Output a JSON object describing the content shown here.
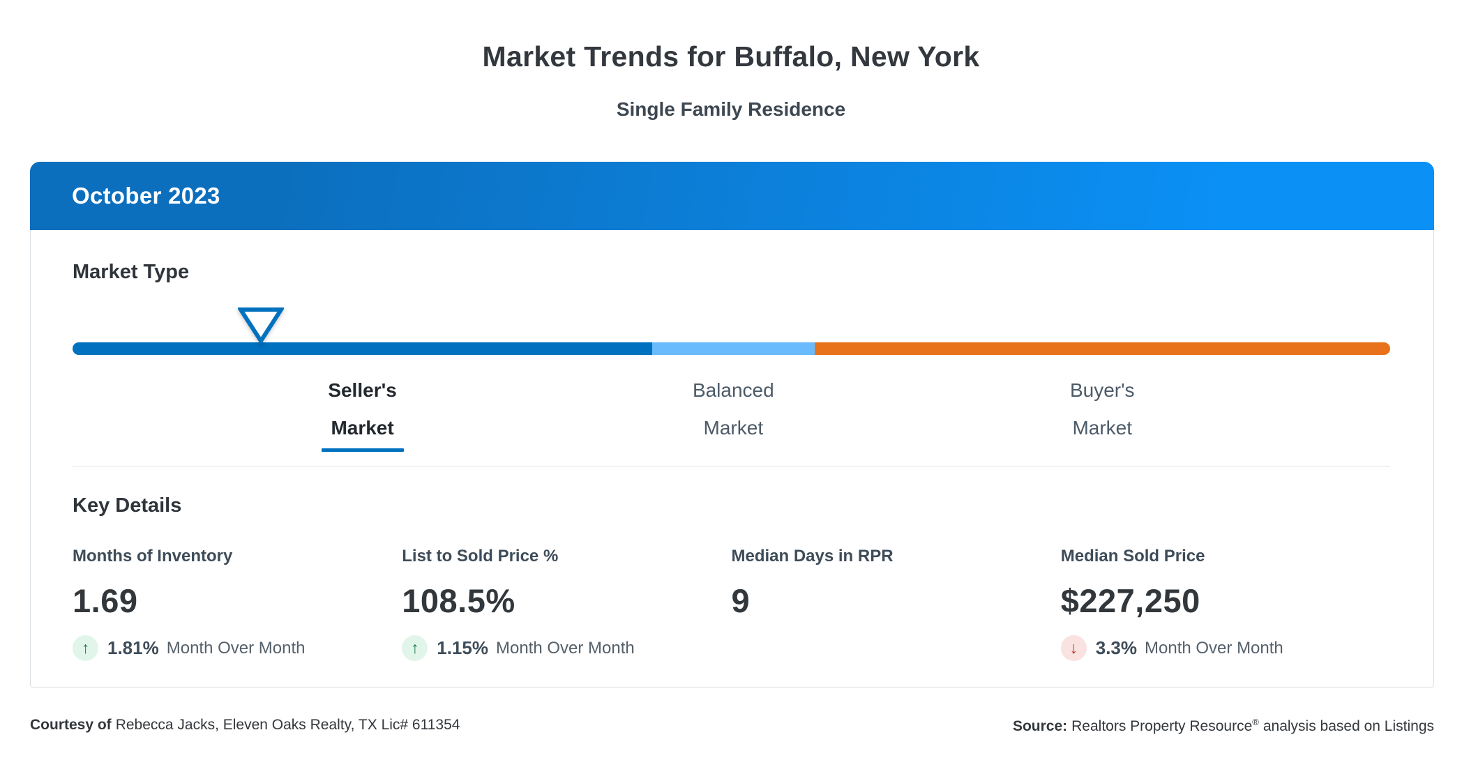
{
  "page": {
    "title": "Market Trends for Buffalo, New York",
    "subtitle": "Single Family Residence"
  },
  "card": {
    "period": "October 2023",
    "market_type": {
      "heading": "Market Type",
      "selected": "Seller's Market",
      "gauge": {
        "segments": [
          {
            "name": "sellers-market-segment",
            "color": "#0071bf",
            "width_pct": 44.0
          },
          {
            "name": "balanced-market-segment",
            "color": "#6abbfd",
            "width_pct": 12.3
          },
          {
            "name": "buyers-market-segment",
            "color": "#e8711c",
            "width_pct": 43.7
          }
        ],
        "marker_position_pct": 14.3,
        "marker_color": "#0071bf"
      },
      "labels": [
        {
          "line1": "Seller's",
          "line2": "Market",
          "active": true
        },
        {
          "line1": "Balanced",
          "line2": "Market",
          "active": false
        },
        {
          "line1": "Buyer's",
          "line2": "Market",
          "active": false
        }
      ]
    },
    "key_details": {
      "heading": "Key Details",
      "mom_label": "Month Over Month",
      "metrics": [
        {
          "label": "Months of Inventory",
          "value": "1.69",
          "change": "1.81%",
          "direction": "up"
        },
        {
          "label": "List to Sold Price %",
          "value": "108.5%",
          "change": "1.15%",
          "direction": "up"
        },
        {
          "label": "Median Days in RPR",
          "value": "9",
          "change": null,
          "direction": null
        },
        {
          "label": "Median Sold Price",
          "value": "$227,250",
          "change": "3.3%",
          "direction": "down"
        }
      ]
    }
  },
  "footer": {
    "courtesy_label": "Courtesy of",
    "courtesy_text": "Rebecca Jacks, Eleven Oaks Realty, TX Lic# 611354",
    "source_label": "Source:",
    "source_name": "Realtors Property Resource",
    "source_reg": "®",
    "source_rest": "analysis based on Listings"
  },
  "icons": {
    "up_arrow": "↑",
    "down_arrow": "↓"
  },
  "colors": {
    "header_gradient_start": "#0c6fbe",
    "header_gradient_end": "#0b90f5",
    "seller_blue": "#0071bf",
    "balanced_blue": "#6abbfd",
    "buyer_orange": "#e8711c",
    "up_green": "#17804d",
    "up_green_bg": "#e2f5eb",
    "down_red": "#c13a2d",
    "down_red_bg": "#f9e2df",
    "card_border": "#d9dee3"
  }
}
